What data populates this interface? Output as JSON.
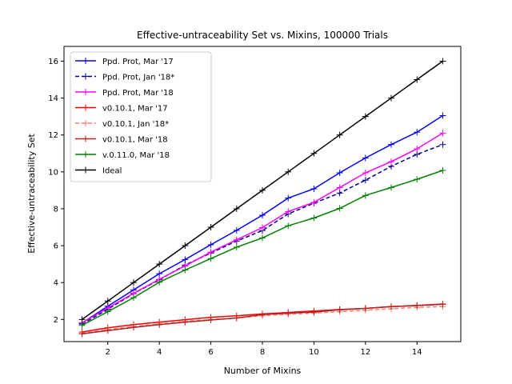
{
  "chart_data": {
    "type": "line",
    "title": "Effective-untraceability Set vs. Mixins, 100000 Trials",
    "xlabel": "Number of Mixins",
    "ylabel": "Effective-untraceability Set",
    "xlim": [
      0.3,
      15.7
    ],
    "ylim": [
      0.8,
      16.8
    ],
    "xticks": [
      2,
      4,
      6,
      8,
      10,
      12,
      14
    ],
    "yticks": [
      2,
      4,
      6,
      8,
      10,
      12,
      14,
      16
    ],
    "legend_position": "upper-left",
    "grid": false,
    "x": [
      1,
      2,
      3,
      4,
      5,
      6,
      7,
      8,
      9,
      10,
      11,
      12,
      13,
      14,
      15
    ],
    "series": [
      {
        "name": "Ppd. Prot, Mar '17",
        "color": "#0000ff",
        "dashed": false,
        "values": [
          1.8,
          2.72,
          3.6,
          4.48,
          5.25,
          6.05,
          6.83,
          7.65,
          8.58,
          9.08,
          9.95,
          10.75,
          11.48,
          12.15,
          13.05
        ]
      },
      {
        "name": "Ppd. Prot, Jan '18*",
        "color": "#00008b",
        "dashed": true,
        "values": [
          1.75,
          2.55,
          3.4,
          4.15,
          4.95,
          5.6,
          6.25,
          6.82,
          7.72,
          8.3,
          8.85,
          9.55,
          10.3,
          10.95,
          11.48
        ]
      },
      {
        "name": "Ppd. Prot, Mar '18",
        "color": "#ff00ff",
        "dashed": false,
        "values": [
          1.82,
          2.62,
          3.42,
          4.18,
          4.9,
          5.65,
          6.32,
          6.98,
          7.85,
          8.35,
          9.15,
          9.95,
          10.55,
          11.25,
          12.1
        ]
      },
      {
        "name": "v0.10.1, Mar '17",
        "color": "#ff0000",
        "dashed": false,
        "values": [
          1.32,
          1.55,
          1.72,
          1.86,
          1.99,
          2.12,
          2.2,
          2.3,
          2.38,
          2.46,
          2.54,
          2.6,
          2.7,
          2.76,
          2.84
        ]
      },
      {
        "name": "v0.10.1, Jan '18*",
        "color": "#fa8072",
        "dashed": true,
        "values": [
          1.25,
          1.45,
          1.62,
          1.76,
          1.9,
          2.0,
          2.08,
          2.2,
          2.28,
          2.35,
          2.42,
          2.5,
          2.58,
          2.65,
          2.7
        ]
      },
      {
        "name": "v0.10.1, Mar '18",
        "color": "#b22222",
        "dashed": false,
        "values": [
          1.22,
          1.4,
          1.57,
          1.72,
          1.85,
          1.97,
          2.08,
          2.26,
          2.34,
          2.4,
          2.52,
          2.6,
          2.7,
          2.75,
          2.82
        ]
      },
      {
        "name": "v.0.11.0, Mar '18",
        "color": "#008000",
        "dashed": false,
        "values": [
          1.68,
          2.42,
          3.18,
          4.02,
          4.68,
          5.3,
          5.92,
          6.42,
          7.08,
          7.5,
          8.02,
          8.72,
          9.15,
          9.6,
          10.08
        ]
      },
      {
        "name": "Ideal",
        "color": "#000000",
        "dashed": false,
        "values": [
          2,
          3,
          4,
          5,
          6,
          7,
          8,
          9,
          10,
          11,
          12,
          13,
          14,
          15,
          16
        ]
      }
    ]
  }
}
